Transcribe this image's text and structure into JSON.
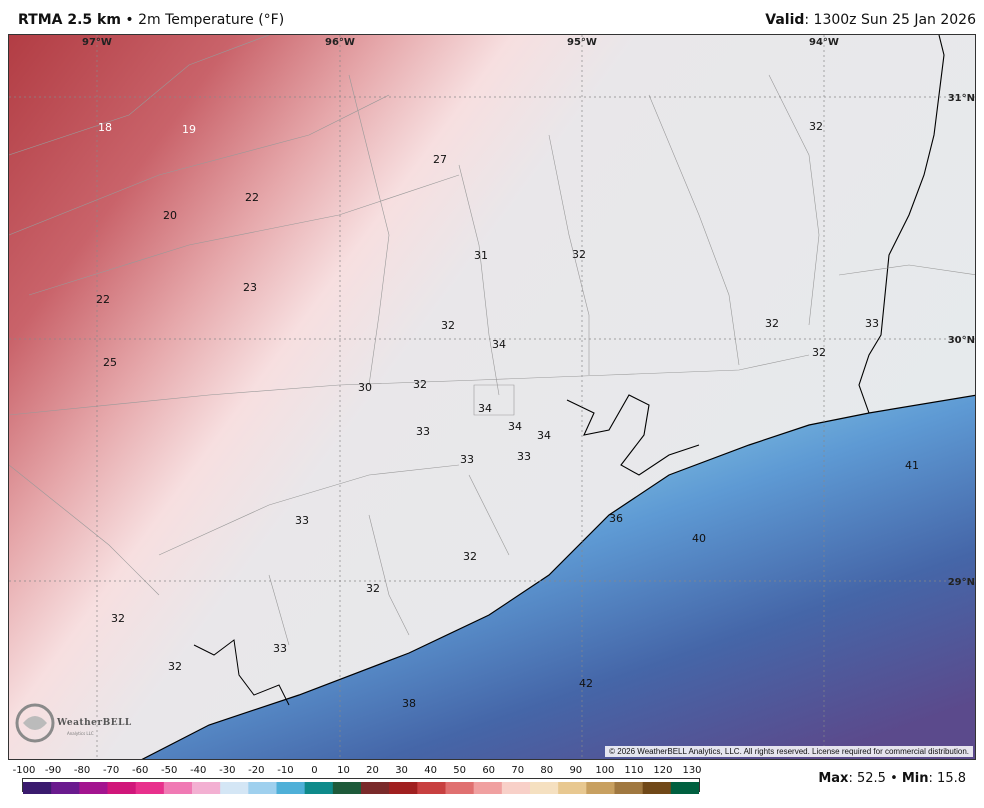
{
  "header": {
    "product": "RTMA 2.5 km",
    "separator": "•",
    "field": "2m Temperature (°F)",
    "valid_label": "Valid",
    "valid_time": ": 1300z Sun 25 Jan 2026"
  },
  "map": {
    "longitudes": [
      "97°W",
      "96°W",
      "95°W",
      "94°W"
    ],
    "latitudes": [
      "31°N",
      "30°N",
      "29°N"
    ],
    "temperatures": [
      "18",
      "19",
      "27",
      "32",
      "22",
      "20",
      "31",
      "32",
      "23",
      "22",
      "32",
      "34",
      "32",
      "33",
      "25",
      "30",
      "32",
      "32",
      "34",
      "34",
      "34",
      "33",
      "33",
      "33",
      "41",
      "36",
      "40",
      "33",
      "32",
      "32",
      "32",
      "33",
      "32",
      "38",
      "42"
    ],
    "colors": {
      "warm_dark": "#b8454a",
      "warm_mid": "#d98a8e",
      "warm_light": "#f3d7d7",
      "neutral": "#e8e8ea",
      "cool_light": "#c9ecef",
      "cool_mid": "#6fa6d8",
      "cool_dark": "#3e5a9a",
      "purple": "#5a4a8f"
    }
  },
  "copyright": "© 2026 WeatherBELL Analytics, LLC. All rights reserved. License required for commercial distribution.",
  "logo": {
    "name": "WeatherBELL",
    "sub": "Analytics LLC"
  },
  "colorbar": {
    "ticks": [
      "-100",
      "-90",
      "-80",
      "-70",
      "-60",
      "-50",
      "-40",
      "-30",
      "-20",
      "-10",
      "0",
      "10",
      "20",
      "30",
      "40",
      "50",
      "60",
      "70",
      "80",
      "90",
      "100",
      "110",
      "120",
      "130"
    ],
    "colors": [
      "#3a1a6e",
      "#6a1a8e",
      "#a3148f",
      "#d0167a",
      "#e8308c",
      "#f07ab4",
      "#f3b0d2",
      "#d4e6f5",
      "#9fd0ee",
      "#4fb0d8",
      "#0e8a8a",
      "#1e5a3a",
      "#7a2a2a",
      "#a02020",
      "#c84040",
      "#e07070",
      "#f0a0a0",
      "#f8d0c8",
      "#f5e0c0",
      "#e8c890",
      "#c8a060",
      "#a07840",
      "#704818",
      "#006040"
    ]
  },
  "stats": {
    "max_label": "Max",
    "max_value": ": 52.5",
    "dot": "•",
    "min_label": "Min",
    "min_value": ": 15.8"
  }
}
